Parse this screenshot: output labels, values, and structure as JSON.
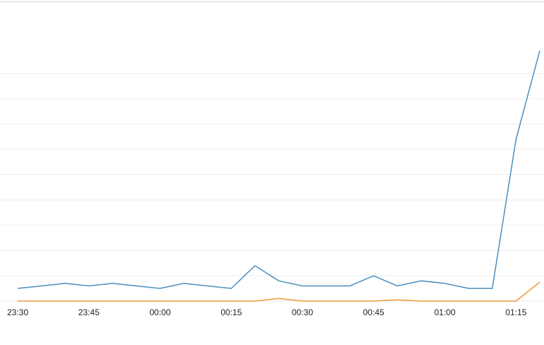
{
  "chart_data": {
    "type": "line",
    "categories": [
      "23:30",
      null,
      null,
      "23:45",
      null,
      null,
      "00:00",
      null,
      null,
      "00:15",
      null,
      null,
      "00:30",
      null,
      null,
      "00:45",
      null,
      null,
      "01:00",
      null,
      null,
      "01:15",
      null
    ],
    "series": [
      {
        "color": "#4a8fc1",
        "values": [
          0.5,
          0.6,
          0.7,
          0.6,
          0.7,
          0.6,
          0.5,
          0.7,
          0.6,
          0.5,
          1.4,
          0.8,
          0.6,
          0.6,
          0.6,
          1.0,
          0.6,
          0.8,
          0.7,
          0.5,
          0.5,
          6.4,
          9.9
        ]
      },
      {
        "color": "#f0993b",
        "values": [
          0,
          0,
          0,
          0,
          0,
          0,
          0,
          0,
          0,
          0,
          0,
          0.1,
          0,
          0,
          0,
          0,
          0.05,
          0,
          0,
          0,
          0,
          0,
          0.75
        ]
      }
    ],
    "ylim": [
      0,
      11.85
    ],
    "yticks": [
      0,
      1,
      2,
      3,
      4,
      5,
      6,
      7,
      8,
      9
    ],
    "grid": true
  }
}
